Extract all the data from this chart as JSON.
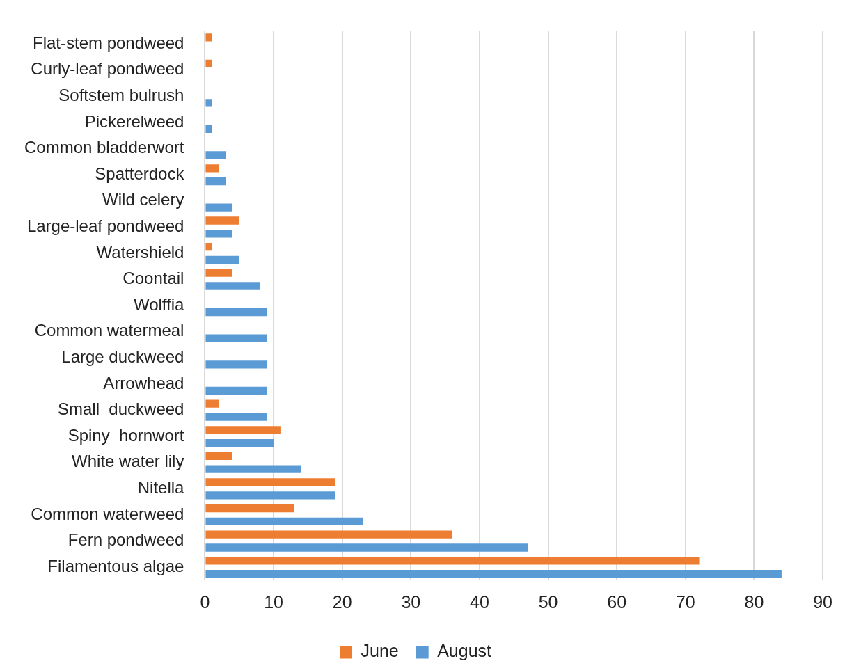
{
  "chart_data": {
    "type": "bar",
    "orientation": "horizontal",
    "categories": [
      "Flat-stem pondweed",
      "Curly-leaf pondweed",
      "Softstem bulrush",
      "Pickerelweed",
      "Common bladderwort",
      "Spatterdock",
      "Wild celery",
      "Large-leaf pondweed",
      "Watershield",
      "Coontail",
      "Wolffia",
      "Common watermeal",
      "Large duckweed",
      "Arrowhead",
      "Small  duckweed",
      "Spiny  hornwort",
      "White water lily",
      "Nitella",
      "Common waterweed",
      "Fern pondweed",
      "Filamentous algae"
    ],
    "series": [
      {
        "name": "June",
        "color": "#ed7d31",
        "values": [
          1,
          1,
          null,
          null,
          null,
          2,
          null,
          5,
          1,
          4,
          null,
          null,
          null,
          null,
          2,
          11,
          4,
          19,
          13,
          36,
          72
        ]
      },
      {
        "name": "August",
        "color": "#5b9bd5",
        "values": [
          null,
          null,
          1,
          1,
          3,
          3,
          4,
          4,
          5,
          8,
          9,
          9,
          9,
          9,
          9,
          10,
          14,
          19,
          23,
          47,
          84
        ]
      }
    ],
    "xlim": [
      0,
      90
    ],
    "xticks": [
      0,
      10,
      20,
      30,
      40,
      50,
      60,
      70,
      80,
      90
    ],
    "grid": "x",
    "legend": "bottom"
  }
}
